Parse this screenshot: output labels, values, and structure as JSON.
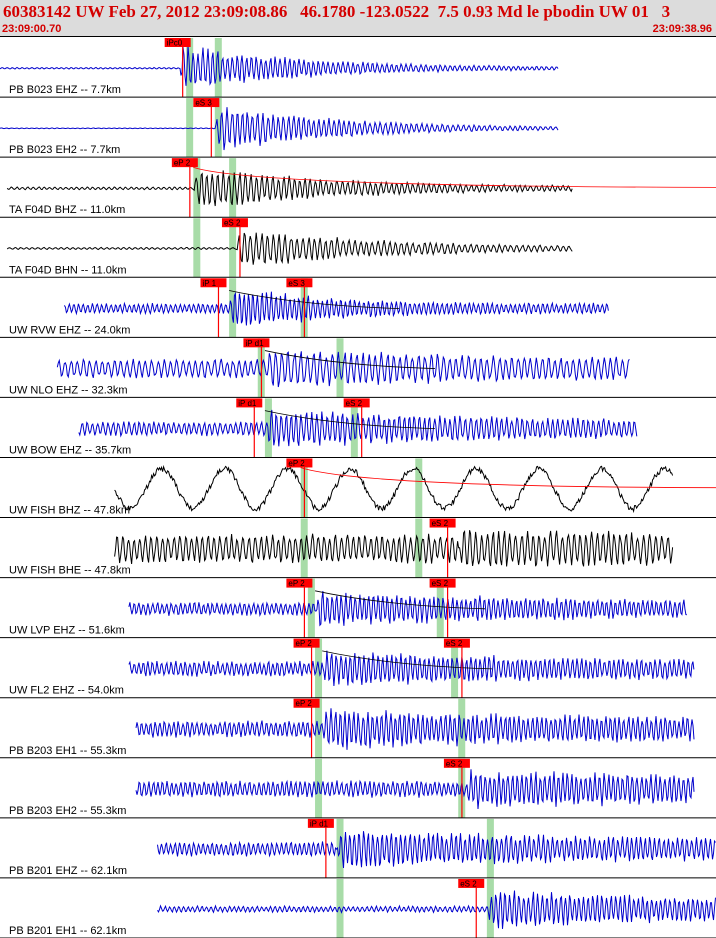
{
  "header": {
    "title": "60383142 UW Feb 27, 2012 23:09:08.86   46.1780 -123.0522  7.5 0.93 Md le pbodin UW 01   3",
    "start_time": "23:09:00.70",
    "end_time": "23:09:38.96"
  },
  "colors": {
    "header_bg": "#dcdcdc",
    "header_text": "#d40000",
    "trace_blue": "#0000cc",
    "trace_black": "#000000",
    "pick_red": "#ff0000",
    "window_green": "#a8dca8"
  },
  "traces": [
    {
      "label": "PB B023 EHZ -- 7.7km",
      "color": "blue",
      "pick": "iPc0",
      "pick_pos": 0.23,
      "green": [
        0.26,
        0.3
      ],
      "start": 0.0,
      "end": 0.78,
      "onset": 0.25,
      "amp": 26,
      "freq": 3.2,
      "noise": 0.03,
      "decay": 0.35
    },
    {
      "label": "PB B023 EH2 -- 7.7km",
      "color": "blue",
      "pick": "eS 3",
      "pick_pos": 0.27,
      "green": [
        0.26,
        0.3
      ],
      "start": 0.0,
      "end": 0.78,
      "onset": 0.3,
      "amp": 26,
      "freq": 3.0,
      "noise": 0.015,
      "decay": 0.35
    },
    {
      "label": "TA F04D BHZ -- 11.0km",
      "color": "black",
      "pick": "eP 2",
      "pick_pos": 0.24,
      "green": [
        0.27,
        0.32
      ],
      "start": 0.01,
      "end": 0.8,
      "onset": 0.27,
      "amp": 24,
      "freq": 2.8,
      "noise": 0.06,
      "decay": 0.4,
      "red_curve": true
    },
    {
      "label": "TA F04D BHN -- 11.0km",
      "color": "black",
      "pick": "eS 2",
      "pick_pos": 0.31,
      "green": [
        0.27,
        0.32
      ],
      "start": 0.01,
      "end": 0.8,
      "onset": 0.33,
      "amp": 22,
      "freq": 2.6,
      "noise": 0.05,
      "decay": 0.4
    },
    {
      "label": "UW RVW EHZ -- 24.0km",
      "color": "blue",
      "pick": "iP 1",
      "pick_pos": 0.28,
      "pick2": "eS 3",
      "pick2_pos": 0.4,
      "green": [
        0.32,
        0.42
      ],
      "start": 0.09,
      "end": 0.85,
      "onset": 0.32,
      "amp": 25,
      "freq": 3.4,
      "noise": 0.22,
      "decay": 0.25,
      "black_curve": true
    },
    {
      "label": "UW NLO EHZ -- 32.3km",
      "color": "blue",
      "pick": "iP d1",
      "pick_pos": 0.34,
      "green": [
        0.36,
        0.47
      ],
      "start": 0.08,
      "end": 0.88,
      "onset": 0.37,
      "amp": 22,
      "freq": 2.4,
      "noise": 0.45,
      "decay": 0.6,
      "black_curve": true
    },
    {
      "label": "UW BOW EHZ -- 35.7km",
      "color": "blue",
      "pick": "iP d1",
      "pick_pos": 0.33,
      "pick2": "eS 2",
      "pick2_pos": 0.48,
      "green": [
        0.37,
        0.49
      ],
      "start": 0.11,
      "end": 0.89,
      "onset": 0.37,
      "amp": 22,
      "freq": 3.0,
      "noise": 0.35,
      "decay": 0.6,
      "black_curve": true
    },
    {
      "label": "UW FISH BHZ -- 47.8km",
      "color": "black",
      "pick": "eP 2",
      "pick_pos": 0.4,
      "green": [
        0.42,
        0.58
      ],
      "start": 0.16,
      "end": 0.94,
      "onset": 0.42,
      "amp": 22,
      "freq": 0.9,
      "noise": 0.85,
      "decay": 0.9,
      "red_curve": true
    },
    {
      "label": "UW FISH BHE -- 47.8km",
      "color": "black",
      "pick": "eS 2",
      "pick_pos": 0.6,
      "green": [
        0.42,
        0.58
      ],
      "start": 0.16,
      "end": 0.94,
      "onset": 0.64,
      "amp": 22,
      "freq": 2.6,
      "noise": 0.7,
      "decay": 0.6
    },
    {
      "label": "UW LVP EHZ -- 51.6km",
      "color": "blue",
      "pick": "eP 2",
      "pick_pos": 0.4,
      "pick2": "eS 2",
      "pick2_pos": 0.6,
      "green": [
        0.43,
        0.61
      ],
      "start": 0.18,
      "end": 0.96,
      "onset": 0.44,
      "amp": 20,
      "freq": 3.4,
      "noise": 0.35,
      "decay": 0.7,
      "black_curve": true
    },
    {
      "label": "UW FL2 EHZ -- 54.0km",
      "color": "blue",
      "pick": "eP 2",
      "pick_pos": 0.41,
      "pick2": "eS 2",
      "pick2_pos": 0.62,
      "green": [
        0.44,
        0.63
      ],
      "start": 0.18,
      "end": 0.97,
      "onset": 0.45,
      "amp": 20,
      "freq": 3.4,
      "noise": 0.4,
      "decay": 0.7,
      "black_curve": true
    },
    {
      "label": "PB B203 EH1 -- 55.3km",
      "color": "blue",
      "pick": "eP 2",
      "pick_pos": 0.41,
      "green": [
        0.44,
        0.64
      ],
      "start": 0.19,
      "end": 0.97,
      "onset": 0.45,
      "amp": 22,
      "freq": 3.4,
      "noise": 0.4,
      "decay": 0.9
    },
    {
      "label": "PB B203 EH2 -- 55.3km",
      "color": "blue",
      "pick": "eS 2",
      "pick_pos": 0.62,
      "green": [
        0.44,
        0.64
      ],
      "start": 0.19,
      "end": 0.97,
      "onset": 0.65,
      "amp": 22,
      "freq": 3.4,
      "noise": 0.4,
      "decay": 0.9
    },
    {
      "label": "PB B201 EHZ -- 62.1km",
      "color": "blue",
      "pick": "iP d1",
      "pick_pos": 0.43,
      "green": [
        0.47,
        0.68
      ],
      "start": 0.22,
      "end": 1.0,
      "onset": 0.47,
      "amp": 22,
      "freq": 3.4,
      "noise": 0.35,
      "decay": 0.9
    },
    {
      "label": "PB B201 EH1 -- 62.1km",
      "color": "blue",
      "pick": "eS 2",
      "pick_pos": 0.64,
      "green": [
        0.47,
        0.68
      ],
      "start": 0.22,
      "end": 1.0,
      "onset": 0.68,
      "amp": 22,
      "freq": 3.4,
      "noise": 0.15,
      "decay": 0.9
    }
  ]
}
